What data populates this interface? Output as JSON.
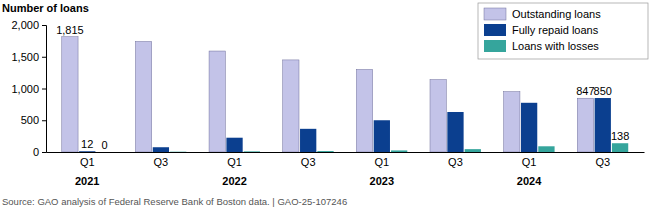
{
  "chart_data": {
    "type": "bar",
    "y_label": "Number of loans",
    "source": "Source: GAO analysis of Federal Reserve Bank of Boston data.  |  GAO-25-107246",
    "categories": [
      "Q1",
      "Q3",
      "Q1",
      "Q3",
      "Q1",
      "Q3",
      "Q1",
      "Q3"
    ],
    "years": [
      "2021",
      null,
      "2022",
      null,
      "2023",
      null,
      "2024",
      null
    ],
    "series": [
      {
        "name": "Outstanding loans",
        "color": "#c3c3e8",
        "values": [
          1815,
          1740,
          1590,
          1450,
          1300,
          1140,
          950,
          847
        ],
        "value_labels": [
          "1,815",
          null,
          null,
          null,
          null,
          null,
          null,
          "847"
        ]
      },
      {
        "name": "Fully repaid loans",
        "color": "#0b3f8f",
        "values": [
          12,
          75,
          225,
          365,
          500,
          630,
          775,
          850
        ],
        "value_labels": [
          "12",
          null,
          null,
          null,
          null,
          null,
          null,
          "850"
        ]
      },
      {
        "name": "Loans with losses",
        "color": "#35a59c",
        "values": [
          0,
          5,
          10,
          15,
          25,
          45,
          90,
          138
        ],
        "value_labels": [
          "0",
          null,
          null,
          null,
          null,
          null,
          null,
          "138"
        ]
      }
    ],
    "ylim": [
      0,
      2000
    ],
    "yticks": [
      0,
      500,
      {
        "value": 1000,
        "label": "1,000"
      },
      {
        "value": 1500,
        "label": "1,500"
      },
      {
        "value": 2000,
        "label": "2,000"
      }
    ],
    "data_labels": true,
    "legend": "top-right",
    "grid": false
  }
}
